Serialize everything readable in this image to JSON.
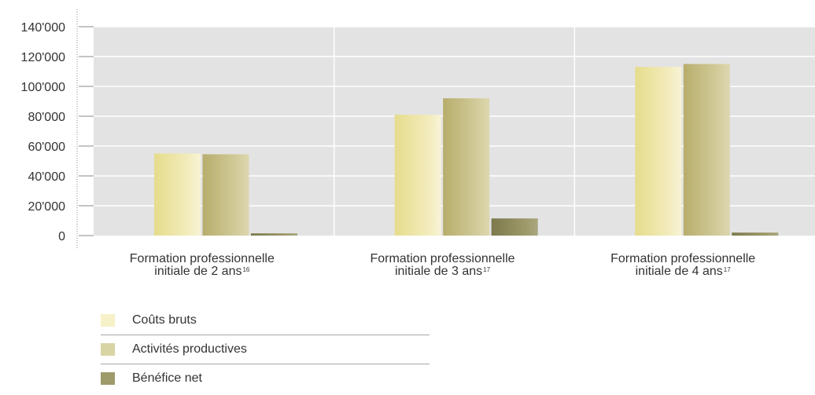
{
  "chart_data": {
    "type": "bar",
    "categories": [
      {
        "line1": "Formation professionnelle",
        "line2": "initiale de 2 ans",
        "note": "16"
      },
      {
        "line1": "Formation professionnelle",
        "line2": "initiale de 3 ans",
        "note": "17"
      },
      {
        "line1": "Formation professionnelle",
        "line2": "initiale de 4 ans",
        "note": "17"
      }
    ],
    "series": [
      {
        "name": "Coûts bruts",
        "color": "#ebe29c",
        "values": [
          55000,
          81000,
          113000
        ]
      },
      {
        "name": "Activités productives",
        "color": "#c8bf86",
        "values": [
          54500,
          92000,
          115000
        ]
      },
      {
        "name": "Bénéfice net",
        "color": "#8d8a5d",
        "values": [
          1500,
          11500,
          2000
        ]
      }
    ],
    "yticks": [
      "140'000",
      "120'000",
      "100'000",
      "80'000",
      "60'000",
      "40'000",
      "20'000",
      "0"
    ],
    "ylim": [
      0,
      140000
    ],
    "grid": true,
    "legend_position": "bottom-left"
  }
}
